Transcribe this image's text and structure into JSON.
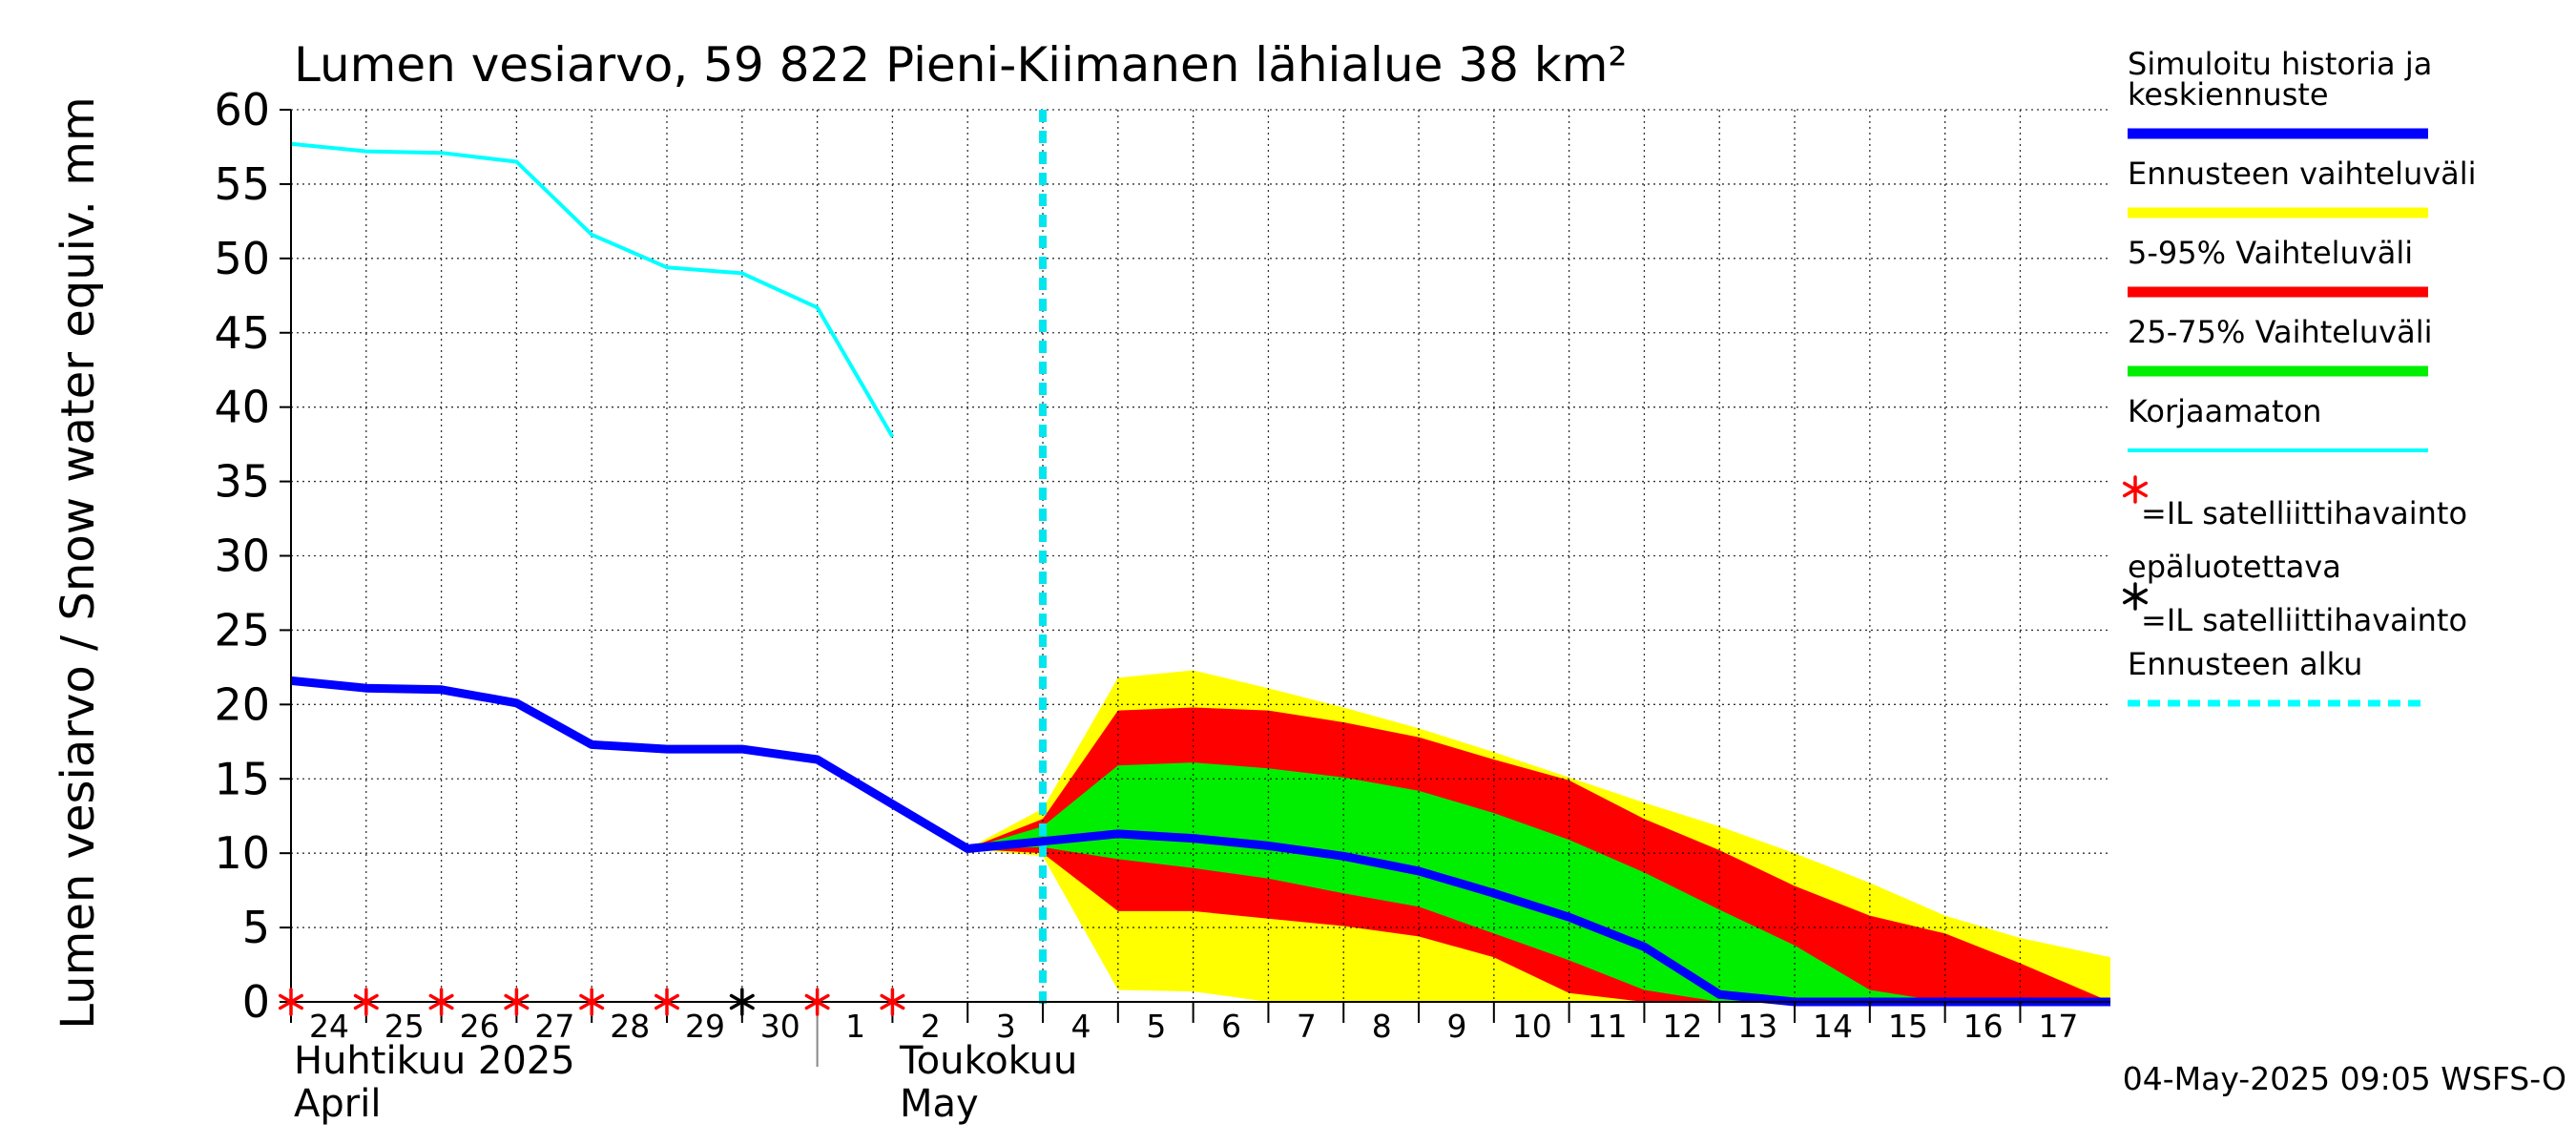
{
  "chart_data": {
    "type": "area",
    "title": "Lumen vesiarvo, 59 822 Pieni-Kiimanen lähialue 38 km²",
    "ylabel": "Lumen vesiarvo / Snow water equiv.    mm",
    "ylim": [
      0,
      60
    ],
    "yticks": [
      0,
      5,
      10,
      15,
      20,
      25,
      30,
      35,
      40,
      45,
      50,
      55,
      60
    ],
    "xlim": [
      0,
      24.2
    ],
    "x_tick_labels": [
      "24",
      "25",
      "26",
      "27",
      "28",
      "29",
      "30",
      "1",
      "2",
      "3",
      "4",
      "5",
      "6",
      "7",
      "8",
      "9",
      "10",
      "11",
      "12",
      "13",
      "14",
      "15",
      "16",
      "17"
    ],
    "month_labels": [
      {
        "line1": "Huhtikuu  2025",
        "line2": "April",
        "x": 0
      },
      {
        "line1": "Toukokuu",
        "line2": "May",
        "x": 8
      }
    ],
    "grid": true,
    "forecast_start_x": 10,
    "x": [
      0,
      1,
      2,
      3,
      4,
      5,
      6,
      7,
      8,
      9,
      10,
      11,
      12,
      13,
      14,
      15,
      16,
      17,
      18,
      19,
      20,
      21,
      22,
      23,
      24.2
    ],
    "series": [
      {
        "name": "Simuloitu historia ja keskiennuste",
        "color": "#0000ff",
        "x": [
          0,
          1,
          2,
          3,
          4,
          5,
          6,
          7,
          8,
          9,
          10,
          11,
          12,
          13,
          14,
          15,
          16,
          17,
          18,
          19,
          20,
          21,
          22,
          23,
          24.2
        ],
        "values": [
          21.6,
          21.1,
          21.0,
          20.1,
          17.3,
          17.0,
          17.0,
          16.3,
          13.3,
          10.3,
          10.8,
          11.3,
          11.0,
          10.5,
          9.8,
          8.8,
          7.3,
          5.7,
          3.7,
          0.5,
          0.0,
          0.0,
          0.0,
          0.0,
          0.0
        ]
      },
      {
        "name": "Korjaamaton",
        "color": "#00ffff",
        "x": [
          0,
          1,
          2,
          3,
          4,
          5,
          6,
          7,
          8
        ],
        "values": [
          57.7,
          57.2,
          57.1,
          56.5,
          51.6,
          49.4,
          49.0,
          46.7,
          38.0
        ]
      }
    ],
    "bands": [
      {
        "name": "Ennusteen vaihteluväli",
        "color": "#ffff00",
        "x": [
          9,
          10,
          11,
          12,
          13,
          14,
          15,
          16,
          17,
          18,
          19,
          20,
          21,
          22,
          23,
          24.2
        ],
        "upper": [
          10.3,
          13.0,
          21.8,
          22.3,
          21.1,
          19.8,
          18.4,
          16.8,
          15.1,
          13.4,
          11.8,
          10.0,
          8.0,
          5.8,
          4.3,
          3.0
        ],
        "lower": [
          10.3,
          9.8,
          0.8,
          0.7,
          0.0,
          0.0,
          0.0,
          0.0,
          0.0,
          0.0,
          0.0,
          0.0,
          0.0,
          0.0,
          0.0,
          0.0
        ]
      },
      {
        "name": "5-95% Vaihteluväli",
        "color": "#ff0000",
        "x": [
          9,
          10,
          11,
          12,
          13,
          14,
          15,
          16,
          17,
          18,
          19,
          20,
          21,
          22,
          23,
          24.2
        ],
        "upper": [
          10.3,
          12.3,
          19.6,
          19.8,
          19.6,
          18.8,
          17.8,
          16.3,
          14.9,
          12.3,
          10.2,
          7.8,
          5.8,
          4.6,
          2.6,
          0.0
        ],
        "lower": [
          10.3,
          10.0,
          6.1,
          6.1,
          5.6,
          5.1,
          4.4,
          3.0,
          0.6,
          0.0,
          0.0,
          0.0,
          0.0,
          0.0,
          0.0,
          0.0
        ]
      },
      {
        "name": "25-75% Vaihteluväli",
        "color": "#00ee00",
        "x": [
          9,
          10,
          11,
          12,
          13,
          14,
          15,
          16,
          17,
          18,
          19,
          20,
          21,
          22,
          23,
          24.2
        ],
        "upper": [
          10.3,
          11.8,
          15.9,
          16.1,
          15.7,
          15.1,
          14.2,
          12.7,
          10.9,
          8.7,
          6.2,
          3.8,
          0.8,
          0.0,
          0.0,
          0.0
        ],
        "lower": [
          10.3,
          10.4,
          9.6,
          9.0,
          8.3,
          7.3,
          6.4,
          4.6,
          2.8,
          0.8,
          0.0,
          0.0,
          0.0,
          0.0,
          0.0,
          0.0
        ]
      }
    ],
    "markers": [
      {
        "name": "=IL satelliittihavainto epäluotettava",
        "color": "#ff0000",
        "x": [
          0,
          1,
          2,
          3,
          4,
          5,
          7,
          8
        ],
        "values": [
          0,
          0,
          0,
          0,
          0,
          0,
          0,
          0
        ]
      },
      {
        "name": "=IL satelliittihavainto",
        "color": "#000000",
        "x": [
          6
        ],
        "values": [
          0
        ]
      }
    ]
  },
  "legend": {
    "entries": [
      {
        "label": [
          "Simuloitu historia ja",
          "keskiennuste"
        ],
        "color": "#0000ff",
        "kind": "line"
      },
      {
        "label": [
          "Ennusteen vaihteluväli"
        ],
        "color": "#ffff00",
        "kind": "line"
      },
      {
        "label": [
          "5-95% Vaihteluväli"
        ],
        "color": "#ff0000",
        "kind": "line"
      },
      {
        "label": [
          "25-75% Vaihteluväli"
        ],
        "color": "#00ee00",
        "kind": "line"
      },
      {
        "label": [
          "Korjaamaton"
        ],
        "color": "#00ffff",
        "kind": "thin"
      },
      {
        "label": [
          "=IL satelliittihavainto",
          "epäluotettava"
        ],
        "color": "#ff0000",
        "kind": "star"
      },
      {
        "label": [
          "=IL satelliittihavainto"
        ],
        "color": "#000000",
        "kind": "star"
      },
      {
        "label": [
          "Ennusteen alku"
        ],
        "color": "#00ffff",
        "kind": "dash"
      }
    ]
  },
  "timestamp": "04-May-2025 09:05 WSFS-O"
}
